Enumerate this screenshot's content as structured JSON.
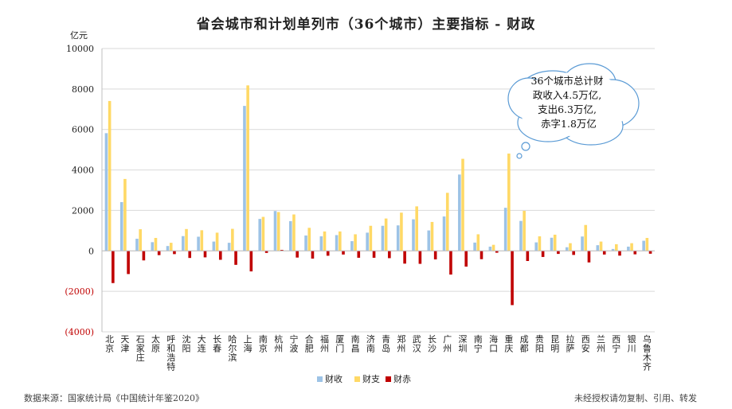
{
  "title": "省会城市和计划单列市（36个城市）主要指标 - 财政",
  "unit": "亿元",
  "note": [
    "36个城市总计财",
    "政收入4.5万亿,",
    "支出6.3万亿,",
    "赤字1.8万亿"
  ],
  "source": "数据来源：国家统计局《中国统计年鉴2020》",
  "copyright": "未经授权请勿复制、引用、转发",
  "colors": {
    "revenue": "#9DC3E6",
    "expenditure": "#FFD966",
    "deficit": "#C00000"
  },
  "chart_data": {
    "type": "bar",
    "title": "省会城市和计划单列市（36个城市）主要指标 - 财政",
    "ylabel": "亿元",
    "ylim": [
      -4000,
      10000
    ],
    "yticks": [
      "(4000)",
      "(2000)",
      "0",
      "2000",
      "4000",
      "6000",
      "8000",
      "10000"
    ],
    "legend_position": "bottom",
    "categories": [
      "北京",
      "天津",
      "石家庄",
      "太原",
      "呼和浩特",
      "沈阳",
      "大连",
      "长春",
      "哈尔滨",
      "上海",
      "南京",
      "杭州",
      "宁波",
      "合肥",
      "福州",
      "厦门",
      "南昌",
      "济南",
      "青岛",
      "郑州",
      "武汉",
      "长沙",
      "广州",
      "深圳",
      "南宁",
      "海口",
      "重庆",
      "成都",
      "贵阳",
      "昆明",
      "拉萨",
      "西安",
      "兰州",
      "西宁",
      "银川",
      "乌鲁木齐"
    ],
    "series": [
      {
        "name": "财收",
        "values": [
          5817,
          2410,
          600,
          430,
          240,
          730,
          700,
          460,
          400,
          7165,
          1580,
          1970,
          1470,
          760,
          720,
          780,
          480,
          900,
          1240,
          1260,
          1560,
          1010,
          1700,
          3773,
          410,
          210,
          2130,
          1480,
          420,
          650,
          180,
          710,
          280,
          95,
          210,
          500
        ]
      },
      {
        "name": "财支",
        "values": [
          7408,
          3555,
          1070,
          640,
          400,
          1080,
          1020,
          900,
          1090,
          8179,
          1680,
          1920,
          1800,
          1140,
          960,
          960,
          820,
          1240,
          1600,
          1890,
          2200,
          1430,
          2870,
          4550,
          820,
          300,
          4810,
          1980,
          720,
          800,
          380,
          1280,
          460,
          330,
          380,
          640
        ]
      },
      {
        "name": "财赤",
        "values": [
          -1591,
          -1145,
          -470,
          -210,
          -160,
          -350,
          -320,
          -440,
          -690,
          -1014,
          -100,
          50,
          -330,
          -380,
          -240,
          -180,
          -340,
          -340,
          -360,
          -630,
          -640,
          -420,
          -1170,
          -777,
          -410,
          -90,
          -2680,
          -500,
          -300,
          -150,
          -200,
          -570,
          -180,
          -235,
          -170,
          -140
        ]
      }
    ]
  }
}
